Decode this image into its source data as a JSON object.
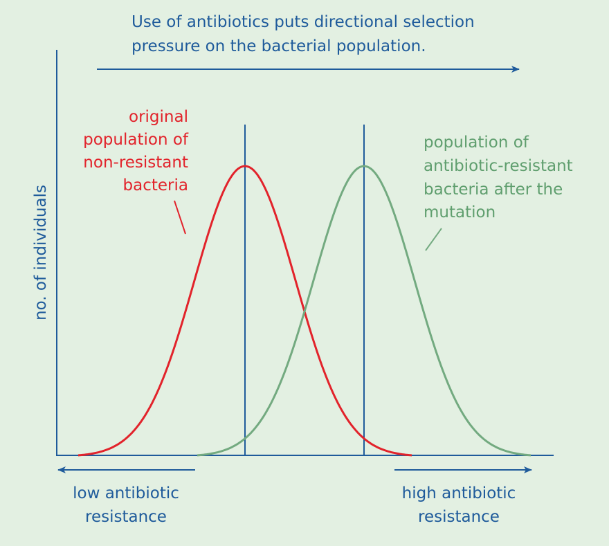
{
  "title": {
    "lines": [
      "Use of antibiotics puts directional selection",
      "pressure on the bacterial population."
    ]
  },
  "y_axis_label": "no. of individuals",
  "original_population": {
    "lines": [
      "original",
      "population of",
      "non-resistant",
      "bacteria"
    ]
  },
  "resistant_population": {
    "lines": [
      "population of",
      "antibiotic-resistant",
      "bacteria after the",
      "mutation"
    ]
  },
  "low_end": {
    "lines": [
      "low antibiotic",
      "resistance"
    ]
  },
  "high_end": {
    "lines": [
      "high antibiotic",
      "resistance"
    ]
  }
}
